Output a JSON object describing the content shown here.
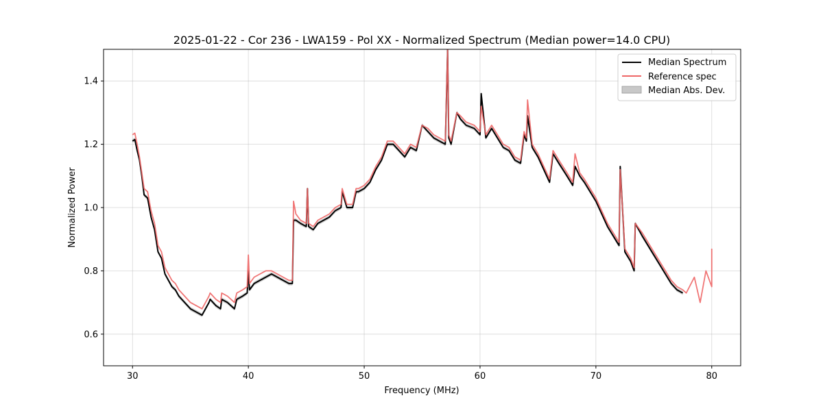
{
  "chart_data": {
    "type": "line",
    "title": "2025-01-22 - Cor 236 - LWA159 - Pol XX - Normalized Spectrum (Median power=14.0 CPU)",
    "xlabel": "Frequency (MHz)",
    "ylabel": "Normalized Power",
    "xlim": [
      27.5,
      82.5
    ],
    "ylim": [
      0.5,
      1.5
    ],
    "xticks": [
      30,
      40,
      50,
      60,
      70,
      80
    ],
    "yticks": [
      0.6,
      0.8,
      1.0,
      1.2,
      1.4
    ],
    "xtick_labels": [
      "30",
      "40",
      "50",
      "60",
      "70",
      "80"
    ],
    "ytick_labels": [
      "0.6",
      "0.8",
      "1.0",
      "1.2",
      "1.4"
    ],
    "grid": true,
    "legend_position": "top-right",
    "series": [
      {
        "name": "Median Spectrum",
        "color": "#000000",
        "x": [
          30.0,
          30.2,
          30.4,
          30.6,
          30.8,
          31.0,
          31.3,
          31.6,
          31.9,
          32.2,
          32.5,
          32.8,
          33.1,
          33.4,
          33.7,
          34.0,
          34.5,
          35.0,
          35.5,
          36.0,
          36.6,
          36.7,
          37.2,
          37.6,
          37.7,
          38.2,
          38.8,
          39.0,
          39.5,
          39.9,
          40.0,
          40.1,
          40.5,
          41.0,
          41.5,
          42.0,
          42.5,
          43.0,
          43.5,
          43.8,
          43.9,
          44.1,
          44.5,
          45.0,
          45.1,
          45.2,
          45.6,
          46.0,
          46.5,
          47.0,
          47.5,
          48.0,
          48.1,
          48.5,
          49.0,
          49.3,
          49.5,
          50.0,
          50.5,
          51.0,
          51.5,
          52.0,
          52.5,
          53.0,
          53.5,
          54.0,
          54.5,
          55.0,
          55.5,
          56.0,
          56.5,
          57.0,
          57.2,
          57.3,
          57.5,
          58.0,
          58.3,
          58.8,
          59.5,
          60.0,
          60.1,
          60.5,
          61.0,
          61.5,
          62.0,
          62.5,
          63.0,
          63.5,
          63.8,
          64.0,
          64.1,
          64.5,
          65.0,
          65.5,
          66.0,
          66.3,
          66.8,
          67.5,
          68.0,
          68.2,
          68.6,
          69.0,
          69.5,
          70.0,
          70.5,
          71.0,
          71.5,
          72.0,
          72.1,
          72.5,
          73.0,
          73.3,
          73.4,
          74.0,
          74.5,
          75.0,
          75.5,
          76.0,
          76.5,
          77.0,
          77.5
        ],
        "y": [
          1.21,
          1.215,
          1.18,
          1.15,
          1.1,
          1.04,
          1.03,
          0.97,
          0.93,
          0.86,
          0.84,
          0.79,
          0.77,
          0.75,
          0.74,
          0.72,
          0.7,
          0.68,
          0.67,
          0.66,
          0.7,
          0.71,
          0.69,
          0.68,
          0.71,
          0.7,
          0.68,
          0.71,
          0.72,
          0.73,
          0.8,
          0.74,
          0.76,
          0.77,
          0.78,
          0.79,
          0.78,
          0.77,
          0.76,
          0.76,
          0.96,
          0.96,
          0.95,
          0.94,
          1.06,
          0.94,
          0.93,
          0.95,
          0.96,
          0.97,
          0.99,
          1.0,
          1.05,
          1.0,
          1.0,
          1.05,
          1.05,
          1.06,
          1.08,
          1.12,
          1.15,
          1.2,
          1.2,
          1.18,
          1.16,
          1.19,
          1.18,
          1.26,
          1.24,
          1.22,
          1.21,
          1.2,
          1.5,
          1.22,
          1.2,
          1.3,
          1.28,
          1.26,
          1.25,
          1.23,
          1.36,
          1.22,
          1.25,
          1.22,
          1.19,
          1.18,
          1.15,
          1.14,
          1.23,
          1.21,
          1.29,
          1.19,
          1.16,
          1.12,
          1.08,
          1.17,
          1.14,
          1.1,
          1.07,
          1.13,
          1.1,
          1.08,
          1.05,
          1.02,
          0.98,
          0.94,
          0.91,
          0.88,
          1.13,
          0.86,
          0.83,
          0.8,
          0.95,
          0.91,
          0.88,
          0.85,
          0.82,
          0.79,
          0.76,
          0.74,
          0.73
        ]
      },
      {
        "name": "Reference spec",
        "color": "#ee6666",
        "x": [
          30.0,
          30.2,
          30.4,
          30.6,
          30.8,
          31.0,
          31.3,
          31.6,
          31.9,
          32.2,
          32.5,
          32.8,
          33.1,
          33.4,
          33.7,
          34.0,
          34.5,
          35.0,
          35.5,
          36.0,
          36.6,
          36.7,
          37.2,
          37.6,
          37.7,
          38.2,
          38.8,
          39.0,
          39.5,
          39.9,
          40.0,
          40.1,
          40.5,
          41.0,
          41.5,
          42.0,
          42.5,
          43.0,
          43.5,
          43.8,
          43.9,
          44.1,
          44.5,
          45.0,
          45.1,
          45.2,
          45.6,
          46.0,
          46.5,
          47.0,
          47.5,
          48.0,
          48.1,
          48.5,
          49.0,
          49.3,
          49.5,
          50.0,
          50.5,
          51.0,
          51.5,
          52.0,
          52.5,
          53.0,
          53.5,
          54.0,
          54.5,
          55.0,
          55.5,
          56.0,
          56.5,
          57.0,
          57.2,
          57.3,
          57.5,
          58.0,
          58.3,
          58.8,
          59.5,
          60.0,
          60.1,
          60.5,
          61.0,
          61.5,
          62.0,
          62.5,
          63.0,
          63.5,
          63.8,
          64.0,
          64.1,
          64.5,
          65.0,
          65.5,
          66.0,
          66.3,
          66.8,
          67.5,
          68.0,
          68.2,
          68.6,
          69.0,
          69.5,
          70.0,
          70.5,
          71.0,
          71.5,
          72.0,
          72.1,
          72.5,
          73.0,
          73.3,
          73.4,
          74.0,
          74.5,
          75.0,
          75.5,
          76.0,
          76.5,
          77.0,
          77.5,
          77.8,
          78.5,
          79.0,
          79.5,
          80.0,
          80.0
        ],
        "y": [
          1.23,
          1.235,
          1.2,
          1.16,
          1.11,
          1.06,
          1.05,
          0.99,
          0.95,
          0.88,
          0.86,
          0.81,
          0.79,
          0.77,
          0.76,
          0.74,
          0.72,
          0.7,
          0.69,
          0.68,
          0.72,
          0.73,
          0.71,
          0.7,
          0.73,
          0.72,
          0.7,
          0.73,
          0.74,
          0.75,
          0.85,
          0.76,
          0.78,
          0.79,
          0.8,
          0.8,
          0.79,
          0.78,
          0.77,
          0.77,
          1.02,
          0.98,
          0.96,
          0.95,
          1.06,
          0.95,
          0.94,
          0.96,
          0.97,
          0.98,
          1.0,
          1.01,
          1.06,
          1.01,
          1.01,
          1.06,
          1.06,
          1.07,
          1.09,
          1.13,
          1.16,
          1.21,
          1.21,
          1.19,
          1.17,
          1.2,
          1.19,
          1.26,
          1.25,
          1.23,
          1.22,
          1.21,
          1.5,
          1.23,
          1.21,
          1.3,
          1.29,
          1.27,
          1.26,
          1.24,
          1.32,
          1.23,
          1.26,
          1.23,
          1.2,
          1.19,
          1.16,
          1.15,
          1.24,
          1.22,
          1.34,
          1.2,
          1.17,
          1.13,
          1.09,
          1.18,
          1.15,
          1.11,
          1.08,
          1.17,
          1.11,
          1.09,
          1.06,
          1.03,
          0.99,
          0.95,
          0.92,
          0.89,
          1.12,
          0.87,
          0.84,
          0.81,
          0.95,
          0.92,
          0.89,
          0.86,
          0.83,
          0.8,
          0.77,
          0.75,
          0.74,
          0.73,
          0.78,
          0.7,
          0.8,
          0.75,
          0.87
        ]
      }
    ],
    "bands": [
      {
        "name": "Median Abs. Dev.",
        "color": "#c8c8c8",
        "of_series": "Median Spectrum",
        "half_width": 0.006
      }
    ]
  }
}
